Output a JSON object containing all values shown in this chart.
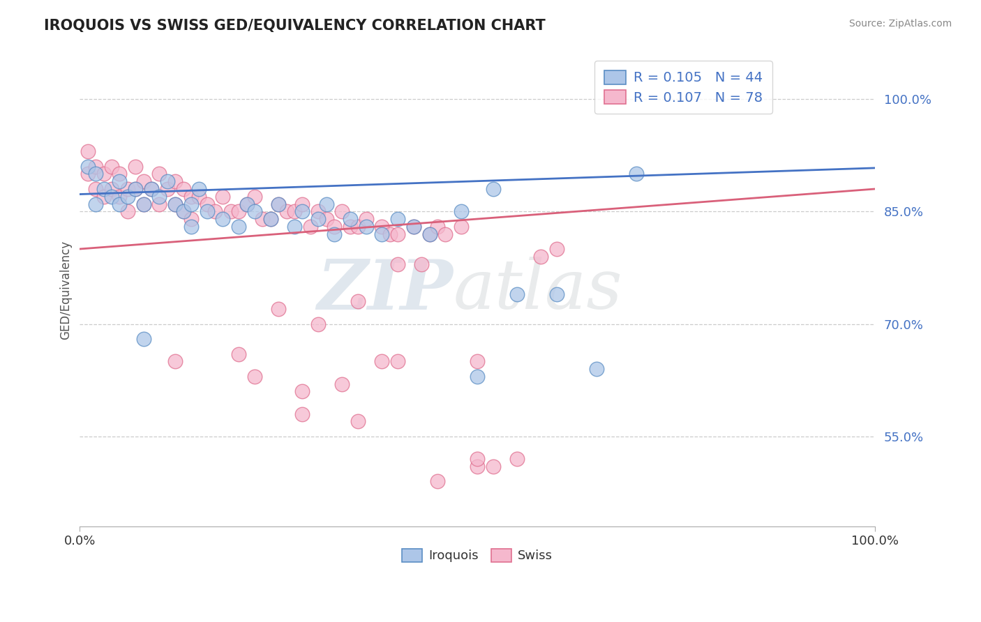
{
  "title": "IROQUOIS VS SWISS GED/EQUIVALENCY CORRELATION CHART",
  "source": "Source: ZipAtlas.com",
  "ylabel": "GED/Equivalency",
  "ytick_labels": [
    "55.0%",
    "70.0%",
    "85.0%",
    "100.0%"
  ],
  "ytick_vals": [
    0.55,
    0.7,
    0.85,
    1.0
  ],
  "dashed_line_vals": [
    0.55,
    0.7,
    0.85,
    1.0
  ],
  "xlim": [
    0.0,
    1.0
  ],
  "ylim": [
    0.43,
    1.06
  ],
  "iroquois_color": "#adc6e8",
  "swiss_color": "#f5b8cd",
  "iroquois_edge_color": "#5b8ec4",
  "swiss_edge_color": "#e07090",
  "iroquois_line_color": "#4472c4",
  "swiss_line_color": "#d9607a",
  "legend_line1": "R = 0.105   N = 44",
  "legend_line2": "R = 0.107   N = 78",
  "watermark_zip": "ZIP",
  "watermark_atlas": "atlas",
  "iroquois_line_start_y": 0.873,
  "iroquois_line_end_y": 0.908,
  "swiss_line_start_y": 0.8,
  "swiss_line_end_y": 0.88,
  "iroquois_x": [
    0.01,
    0.02,
    0.02,
    0.03,
    0.04,
    0.05,
    0.05,
    0.06,
    0.07,
    0.08,
    0.09,
    0.1,
    0.11,
    0.12,
    0.13,
    0.14,
    0.15,
    0.16,
    0.18,
    0.2,
    0.21,
    0.22,
    0.24,
    0.25,
    0.27,
    0.28,
    0.3,
    0.31,
    0.32,
    0.34,
    0.36,
    0.38,
    0.4,
    0.42,
    0.44,
    0.48,
    0.5,
    0.52,
    0.55,
    0.6,
    0.65,
    0.7,
    0.14,
    0.08
  ],
  "iroquois_y": [
    0.91,
    0.9,
    0.86,
    0.88,
    0.87,
    0.89,
    0.86,
    0.87,
    0.88,
    0.86,
    0.88,
    0.87,
    0.89,
    0.86,
    0.85,
    0.86,
    0.88,
    0.85,
    0.84,
    0.83,
    0.86,
    0.85,
    0.84,
    0.86,
    0.83,
    0.85,
    0.84,
    0.86,
    0.82,
    0.84,
    0.83,
    0.82,
    0.84,
    0.83,
    0.82,
    0.85,
    0.63,
    0.88,
    0.74,
    0.74,
    0.64,
    0.9,
    0.83,
    0.68
  ],
  "swiss_x": [
    0.01,
    0.01,
    0.02,
    0.02,
    0.03,
    0.03,
    0.04,
    0.04,
    0.05,
    0.05,
    0.06,
    0.06,
    0.07,
    0.07,
    0.08,
    0.08,
    0.09,
    0.1,
    0.1,
    0.11,
    0.12,
    0.12,
    0.13,
    0.13,
    0.14,
    0.14,
    0.15,
    0.16,
    0.17,
    0.18,
    0.19,
    0.2,
    0.21,
    0.22,
    0.23,
    0.24,
    0.25,
    0.26,
    0.27,
    0.28,
    0.29,
    0.3,
    0.31,
    0.32,
    0.33,
    0.34,
    0.35,
    0.36,
    0.38,
    0.39,
    0.4,
    0.42,
    0.44,
    0.45,
    0.46,
    0.48,
    0.5,
    0.52,
    0.55,
    0.58,
    0.6,
    0.35,
    0.25,
    0.3,
    0.2,
    0.4,
    0.43,
    0.38,
    0.28,
    0.33,
    0.22,
    0.35,
    0.4,
    0.5,
    0.28,
    0.5,
    0.45,
    0.12
  ],
  "swiss_y": [
    0.93,
    0.9,
    0.91,
    0.88,
    0.9,
    0.87,
    0.91,
    0.88,
    0.9,
    0.87,
    0.88,
    0.85,
    0.91,
    0.88,
    0.89,
    0.86,
    0.88,
    0.9,
    0.86,
    0.88,
    0.89,
    0.86,
    0.88,
    0.85,
    0.87,
    0.84,
    0.87,
    0.86,
    0.85,
    0.87,
    0.85,
    0.85,
    0.86,
    0.87,
    0.84,
    0.84,
    0.86,
    0.85,
    0.85,
    0.86,
    0.83,
    0.85,
    0.84,
    0.83,
    0.85,
    0.83,
    0.83,
    0.84,
    0.83,
    0.82,
    0.82,
    0.83,
    0.82,
    0.83,
    0.82,
    0.83,
    0.51,
    0.51,
    0.52,
    0.79,
    0.8,
    0.73,
    0.72,
    0.7,
    0.66,
    0.78,
    0.78,
    0.65,
    0.61,
    0.62,
    0.63,
    0.57,
    0.65,
    0.65,
    0.58,
    0.52,
    0.49,
    0.65
  ]
}
